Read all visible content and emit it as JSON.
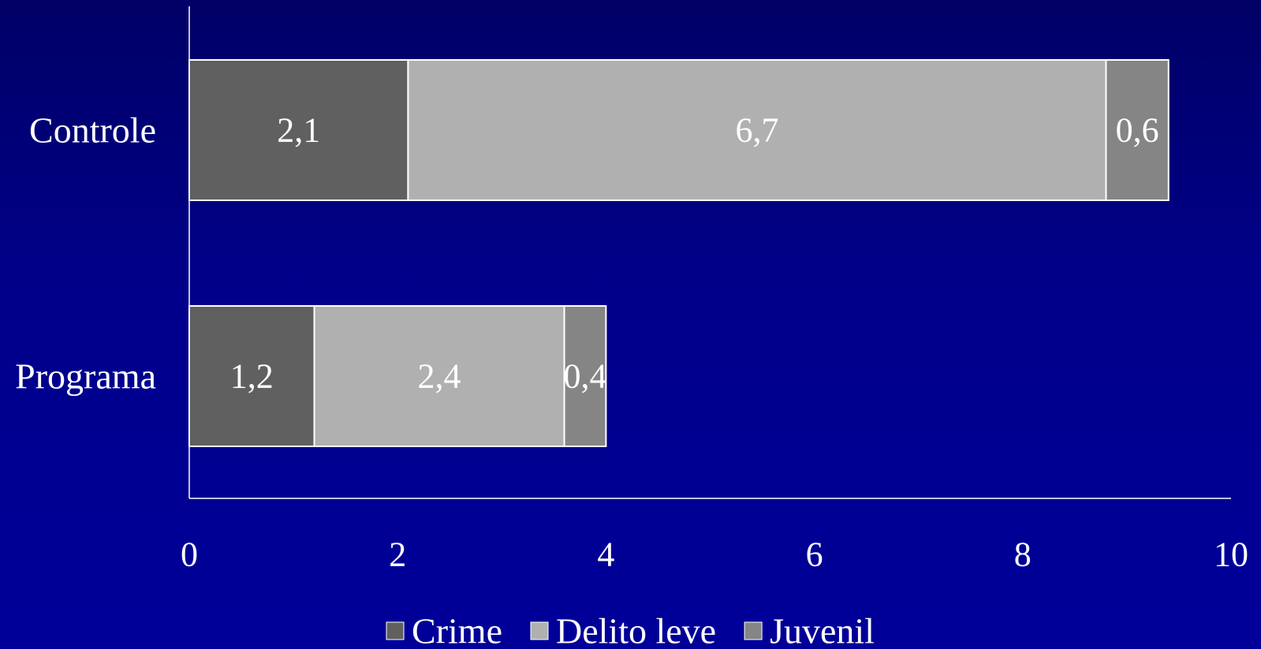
{
  "chart_data": {
    "type": "bar",
    "orientation": "horizontal",
    "stacked": true,
    "categories": [
      "Controle",
      "Programa"
    ],
    "series": [
      {
        "name": "Crime",
        "values": [
          2.1,
          1.2
        ],
        "labels": [
          "2,1",
          "1,2"
        ],
        "color": "#606060"
      },
      {
        "name": "Delito leve",
        "values": [
          6.7,
          2.4
        ],
        "labels": [
          "6,7",
          "2,4"
        ],
        "color": "#b0b0b0"
      },
      {
        "name": "Juvenil",
        "values": [
          0.6,
          0.4
        ],
        "labels": [
          "0,6",
          "0,4"
        ],
        "color": "#858585"
      }
    ],
    "xlim": [
      0,
      10
    ],
    "xticks": [
      0,
      2,
      4,
      6,
      8,
      10
    ],
    "xtick_labels": [
      "0",
      "2",
      "4",
      "6",
      "8",
      "10"
    ],
    "title": "",
    "xlabel": "",
    "ylabel": "",
    "grid": false,
    "legend_position": "bottom"
  },
  "colors": {
    "background_top": "#000066",
    "background_bottom": "#000099",
    "text": "#ffffff",
    "axis": "#ffffff",
    "bar_border": "#ffffff"
  }
}
